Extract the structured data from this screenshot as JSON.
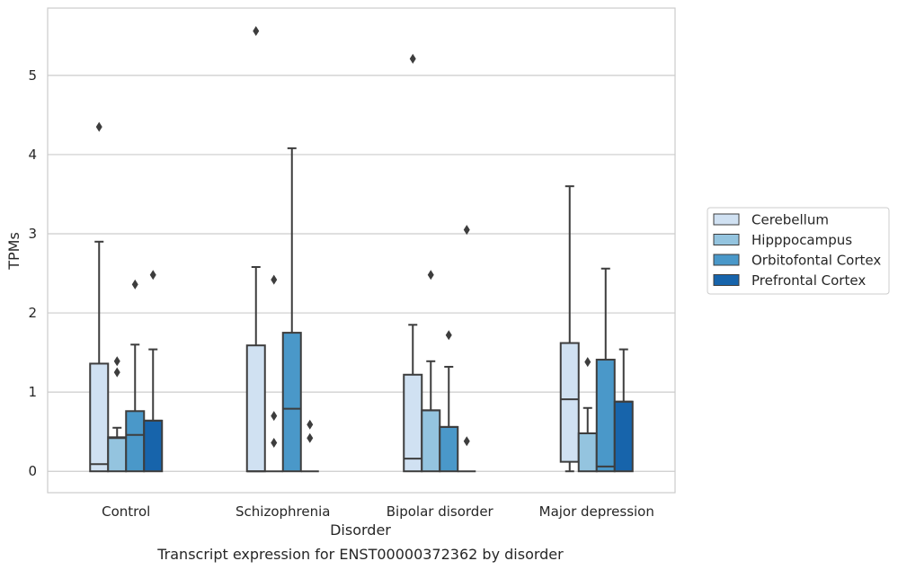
{
  "chart_data": {
    "type": "box",
    "caption": "Transcript expression for ENST00000372362 by disorder",
    "xlabel": "Disorder",
    "ylabel": "TPMs",
    "ylim": [
      -0.27,
      5.85
    ],
    "yticks": [
      0,
      1,
      2,
      3,
      4,
      5
    ],
    "grid": true,
    "legend_position": "right",
    "categories": [
      "Control",
      "Schizophrenia",
      "Bipolar disorder",
      "Major depression"
    ],
    "series": [
      {
        "name": "Cerebellum",
        "color": "#d0e1f2",
        "boxes": [
          {
            "whislo": 0,
            "q1": 0,
            "med": 0.09,
            "q3": 1.36,
            "whishi": 2.9,
            "fliers": [
              4.35
            ]
          },
          {
            "whislo": 0,
            "q1": 0,
            "med": 0,
            "q3": 1.59,
            "whishi": 2.58,
            "fliers": [
              5.56
            ]
          },
          {
            "whislo": 0,
            "q1": 0,
            "med": 0.16,
            "q3": 1.22,
            "whishi": 1.85,
            "fliers": [
              5.21
            ]
          },
          {
            "whislo": 0,
            "q1": 0.12,
            "med": 0.91,
            "q3": 1.62,
            "whishi": 3.6,
            "fliers": []
          }
        ]
      },
      {
        "name": "Hipppocampus",
        "color": "#94c4df",
        "boxes": [
          {
            "whislo": 0,
            "q1": 0,
            "med": 0.42,
            "q3": 0.43,
            "whishi": 0.55,
            "fliers": [
              1.25,
              1.39
            ]
          },
          {
            "whislo": 0,
            "q1": 0,
            "med": 0,
            "q3": 0,
            "whishi": 0,
            "fliers": [
              0.36,
              0.7,
              2.42
            ]
          },
          {
            "whislo": 0,
            "q1": 0,
            "med": 0.77,
            "q3": 0.77,
            "whishi": 1.39,
            "fliers": [
              2.48
            ]
          },
          {
            "whislo": 0,
            "q1": 0,
            "med": 0.48,
            "q3": 0.48,
            "whishi": 0.8,
            "fliers": [
              1.38
            ]
          }
        ]
      },
      {
        "name": "Orbitofontal Cortex",
        "color": "#4a98c9",
        "boxes": [
          {
            "whislo": 0,
            "q1": 0,
            "med": 0.46,
            "q3": 0.76,
            "whishi": 1.6,
            "fliers": [
              2.36
            ]
          },
          {
            "whislo": 0,
            "q1": 0,
            "med": 0.79,
            "q3": 1.75,
            "whishi": 4.08,
            "fliers": []
          },
          {
            "whislo": 0,
            "q1": 0,
            "med": 0.56,
            "q3": 0.56,
            "whishi": 1.32,
            "fliers": [
              1.72
            ]
          },
          {
            "whislo": 0,
            "q1": 0,
            "med": 0.06,
            "q3": 1.41,
            "whishi": 2.56,
            "fliers": []
          }
        ]
      },
      {
        "name": "Prefrontal Cortex",
        "color": "#1764ab",
        "boxes": [
          {
            "whislo": 0,
            "q1": 0,
            "med": 0.64,
            "q3": 0.64,
            "whishi": 1.54,
            "fliers": [
              2.48
            ]
          },
          {
            "whislo": 0,
            "q1": 0,
            "med": 0,
            "q3": 0,
            "whishi": 0,
            "fliers": [
              0.42,
              0.59
            ]
          },
          {
            "whislo": 0,
            "q1": 0,
            "med": 0,
            "q3": 0,
            "whishi": 0,
            "fliers": [
              0.38,
              3.05
            ]
          },
          {
            "whislo": 0,
            "q1": 0,
            "med": 0.88,
            "q3": 0.88,
            "whishi": 1.54,
            "fliers": []
          }
        ]
      }
    ]
  }
}
